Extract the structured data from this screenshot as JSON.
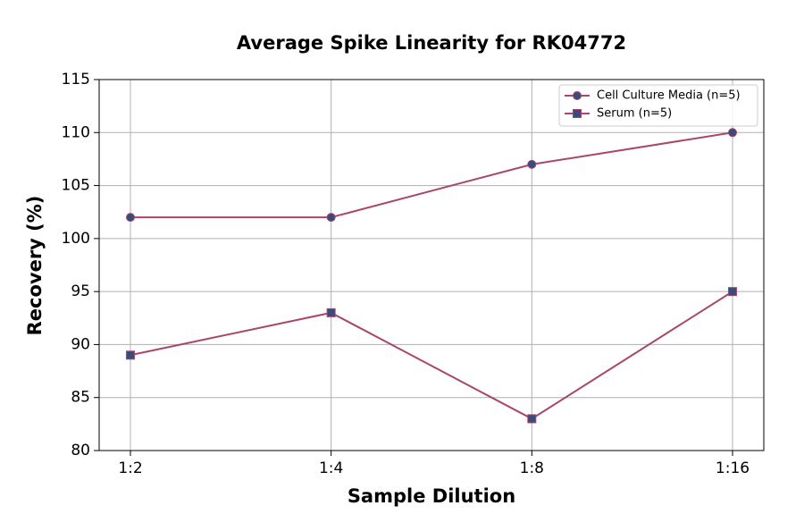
{
  "chart_data": {
    "type": "line",
    "title": "Average Spike Linearity for RK04772",
    "x_label": "Sample Dilution",
    "y_label": "Recovery (%)",
    "categories": [
      "1:2",
      "1:4",
      "1:8",
      "1:16"
    ],
    "series": [
      {
        "name": "Cell Culture Media (n=5)",
        "color": "#a8466c",
        "marker_color": "#3a4a7c",
        "marker": "circle",
        "values": [
          102,
          102,
          107,
          110
        ]
      },
      {
        "name": "Serum (n=5)",
        "color": "#a8466c",
        "marker_color": "#3a4a7c",
        "marker": "square",
        "values": [
          89,
          93,
          83,
          95
        ]
      }
    ],
    "ylim": [
      80,
      115
    ],
    "yticks": [
      80,
      85,
      90,
      95,
      100,
      105,
      110,
      115
    ],
    "grid": true,
    "legend": "upper right"
  }
}
